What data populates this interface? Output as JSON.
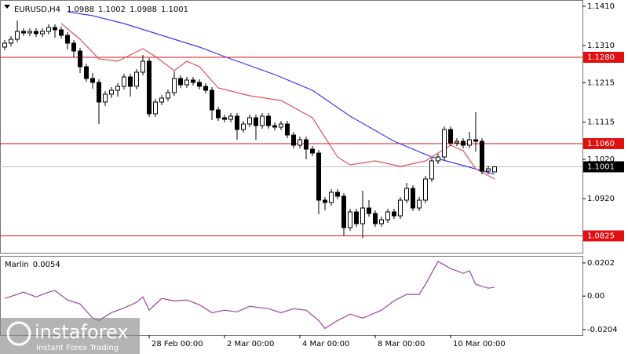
{
  "chart_data": {
    "type": "candlestick",
    "symbol": "EURUSD,H4",
    "candles": [
      [
        1.1306,
        1.1324,
        1.1298,
        1.1316
      ],
      [
        1.1316,
        1.1334,
        1.1308,
        1.1326
      ],
      [
        1.1326,
        1.1374,
        1.1318,
        1.1346
      ],
      [
        1.1346,
        1.1354,
        1.1334,
        1.1342
      ],
      [
        1.1342,
        1.1354,
        1.1334,
        1.1346
      ],
      [
        1.1346,
        1.1354,
        1.1332,
        1.134
      ],
      [
        1.134,
        1.1354,
        1.1332,
        1.1346
      ],
      [
        1.1346,
        1.1364,
        1.1338,
        1.1356
      ],
      [
        1.1356,
        1.1364,
        1.133,
        1.135
      ],
      [
        1.135,
        1.1358,
        1.1328,
        1.1336
      ],
      [
        1.1336,
        1.1344,
        1.13,
        1.1316
      ],
      [
        1.1316,
        1.1324,
        1.128,
        1.1296
      ],
      [
        1.1296,
        1.1304,
        1.124,
        1.1256
      ],
      [
        1.1256,
        1.1264,
        1.1218,
        1.1226
      ],
      [
        1.1226,
        1.124,
        1.12,
        1.1216
      ],
      [
        1.1216,
        1.1224,
        1.111,
        1.1166
      ],
      [
        1.1166,
        1.1194,
        1.1156,
        1.1186
      ],
      [
        1.1186,
        1.1204,
        1.1176,
        1.1196
      ],
      [
        1.1196,
        1.1214,
        1.118,
        1.1206
      ],
      [
        1.1206,
        1.1238,
        1.1198,
        1.123
      ],
      [
        1.123,
        1.1238,
        1.118,
        1.1206
      ],
      [
        1.1206,
        1.125,
        1.1198,
        1.1242
      ],
      [
        1.1242,
        1.1286,
        1.1234,
        1.127
      ],
      [
        1.127,
        1.1278,
        1.1128,
        1.1136
      ],
      [
        1.1136,
        1.1174,
        1.1128,
        1.1166
      ],
      [
        1.1166,
        1.1184,
        1.1158,
        1.1176
      ],
      [
        1.1176,
        1.1198,
        1.1168,
        1.119
      ],
      [
        1.119,
        1.1244,
        1.1182,
        1.1226
      ],
      [
        1.1226,
        1.1234,
        1.1202,
        1.121
      ],
      [
        1.121,
        1.123,
        1.1202,
        1.1222
      ],
      [
        1.1222,
        1.123,
        1.1208,
        1.1216
      ],
      [
        1.1216,
        1.1224,
        1.1198,
        1.1206
      ],
      [
        1.1206,
        1.1214,
        1.1188,
        1.1196
      ],
      [
        1.1196,
        1.1204,
        1.112,
        1.1146
      ],
      [
        1.1146,
        1.1154,
        1.1118,
        1.1126
      ],
      [
        1.1126,
        1.1134,
        1.1114,
        1.1122
      ],
      [
        1.1122,
        1.1138,
        1.1114,
        1.113
      ],
      [
        1.113,
        1.1138,
        1.107,
        1.1096
      ],
      [
        1.1096,
        1.1118,
        1.1088,
        1.111
      ],
      [
        1.111,
        1.1134,
        1.1102,
        1.1126
      ],
      [
        1.1126,
        1.1134,
        1.107,
        1.1106
      ],
      [
        1.1106,
        1.1138,
        1.1098,
        1.113
      ],
      [
        1.113,
        1.1138,
        1.1098,
        1.1106
      ],
      [
        1.1106,
        1.1114,
        1.1094,
        1.1102
      ],
      [
        1.1102,
        1.1118,
        1.1094,
        1.111
      ],
      [
        1.111,
        1.1118,
        1.1074,
        1.1082
      ],
      [
        1.1082,
        1.109,
        1.1048,
        1.1056
      ],
      [
        1.1056,
        1.1078,
        1.1048,
        1.107
      ],
      [
        1.107,
        1.1078,
        1.102,
        1.1046
      ],
      [
        1.1046,
        1.1054,
        1.1028,
        1.1036
      ],
      [
        1.1036,
        1.1044,
        1.088,
        1.0916
      ],
      [
        1.0916,
        1.0924,
        1.089,
        1.091
      ],
      [
        1.091,
        1.0944,
        1.0902,
        1.0936
      ],
      [
        1.0936,
        1.0944,
        1.0918,
        1.0926
      ],
      [
        1.0926,
        1.0934,
        1.0826,
        1.0846
      ],
      [
        1.0846,
        1.0894,
        1.0838,
        1.0886
      ],
      [
        1.0886,
        1.0894,
        1.0848,
        1.0856
      ],
      [
        1.0856,
        1.094,
        1.082,
        1.0896
      ],
      [
        1.0896,
        1.0916,
        1.0874,
        1.0882
      ],
      [
        1.0882,
        1.089,
        1.0848,
        1.0856
      ],
      [
        1.0856,
        1.0874,
        1.0848,
        1.0866
      ],
      [
        1.0866,
        1.0894,
        1.0858,
        1.0886
      ],
      [
        1.0886,
        1.0894,
        1.0868,
        1.0876
      ],
      [
        1.0876,
        1.0924,
        1.0868,
        1.0916
      ],
      [
        1.0916,
        1.096,
        1.0908,
        1.0946
      ],
      [
        1.0946,
        1.0954,
        1.0888,
        1.0896
      ],
      [
        1.0896,
        1.0924,
        1.0888,
        1.0916
      ],
      [
        1.0916,
        1.0978,
        1.0908,
        1.097
      ],
      [
        1.097,
        1.1024,
        1.0962,
        1.1016
      ],
      [
        1.1016,
        1.1034,
        1.1008,
        1.1026
      ],
      [
        1.1026,
        1.1104,
        1.1018,
        1.1096
      ],
      [
        1.1096,
        1.1104,
        1.1054,
        1.1062
      ],
      [
        1.1062,
        1.1074,
        1.1054,
        1.1066
      ],
      [
        1.1066,
        1.1074,
        1.1048,
        1.1056
      ],
      [
        1.1056,
        1.109,
        1.1048,
        1.107
      ],
      [
        1.107,
        1.114,
        1.104,
        1.1066
      ],
      [
        1.1066,
        1.1074,
        1.0982,
        1.099
      ],
      [
        1.099,
        1.1004,
        1.0982,
        1.0996
      ],
      [
        1.0988,
        1.1002,
        1.0988,
        1.1001
      ]
    ],
    "series": [
      {
        "color": "#3b3bf0",
        "x": [
          10,
          14,
          19,
          25,
          31,
          36,
          43,
          49,
          55,
          62,
          68,
          74,
          78
        ],
        "values": [
          1.1396,
          1.1386,
          1.1366,
          1.1336,
          1.1306,
          1.1276,
          1.1236,
          1.1196,
          1.113,
          1.1066,
          1.1026,
          1.1,
          1.0982
        ]
      },
      {
        "color": "#e0505a",
        "x": [
          9,
          12,
          15,
          18,
          20,
          22,
          24,
          27,
          29,
          31,
          34,
          39,
          44,
          49,
          53,
          55,
          59,
          63,
          67,
          69,
          71,
          73,
          75,
          78
        ],
        "values": [
          1.1366,
          1.1326,
          1.1276,
          1.127,
          1.1286,
          1.1302,
          1.1282,
          1.1246,
          1.127,
          1.1256,
          1.1202,
          1.1182,
          1.117,
          1.1126,
          1.1026,
          1.1006,
          1.1016,
          1.1002,
          1.1016,
          1.1036,
          1.1056,
          1.1042,
          1.0996,
          1.097
        ]
      }
    ],
    "ylim": [
      1.078,
      1.1426
    ],
    "yticks": [
      {
        "value": 1.141,
        "label": "1.1410"
      },
      {
        "value": 1.131,
        "label": "1.1310"
      },
      1.1215,
      1.1115,
      {
        "value": 1.102,
        "label": "1.1020"
      },
      {
        "value": 1.092,
        "label": "1.0920"
      }
    ],
    "levels": [
      {
        "value": 1.128,
        "label": "1.1280"
      },
      {
        "value": 1.106,
        "label": "1.1060"
      },
      1.0825
    ],
    "level_color": "#e01010",
    "xticks": [
      {
        "value": 23,
        "label": "28 Feb 00:00"
      },
      {
        "value": 35,
        "label": "2 Mar 00:00"
      },
      {
        "value": 47,
        "label": "4 Mar 00:00"
      },
      {
        "value": 59,
        "label": "8 Mar 00:00"
      },
      {
        "value": 71,
        "label": "10 Mar 00:00"
      }
    ],
    "oscillator": {
      "name": "Marlin",
      "color": "#a040a0",
      "x": [
        0,
        2,
        3,
        5,
        7,
        8,
        10,
        12,
        14,
        15,
        17,
        19,
        21,
        22,
        23,
        25,
        27,
        29,
        31,
        33,
        35,
        37,
        39,
        42,
        44,
        46,
        48,
        50,
        51,
        53,
        55,
        57,
        60,
        62,
        64,
        66,
        67,
        69,
        71,
        73,
        74,
        75,
        77,
        78
      ],
      "values": [
        -0.0014,
        0.001,
        0.0024,
        -0.0005,
        0.0024,
        0.0034,
        -0.0024,
        -0.0048,
        -0.0134,
        -0.0149,
        -0.0101,
        -0.0072,
        -0.0038,
        -0.0005,
        -0.0086,
        -0.0014,
        -0.0029,
        -0.0024,
        -0.0053,
        -0.0101,
        -0.0086,
        -0.0096,
        -0.0062,
        -0.0077,
        -0.0101,
        -0.0077,
        -0.0086,
        -0.0149,
        -0.0197,
        -0.0149,
        -0.011,
        -0.0134,
        -0.0086,
        -0.0029,
        0.001,
        0.001,
        0.0072,
        0.0211,
        0.0168,
        0.0139,
        0.0154,
        0.0072,
        0.0048,
        0.0054
      ],
      "ylim": [
        -0.0238,
        0.024
      ],
      "yticks": [
        0.0202,
        {
          "value": 0,
          "label": "0.00"
        },
        -0.0204
      ]
    }
  },
  "watermark": {
    "brand": "instaforex",
    "tagline": "Instant Forex Trading"
  }
}
